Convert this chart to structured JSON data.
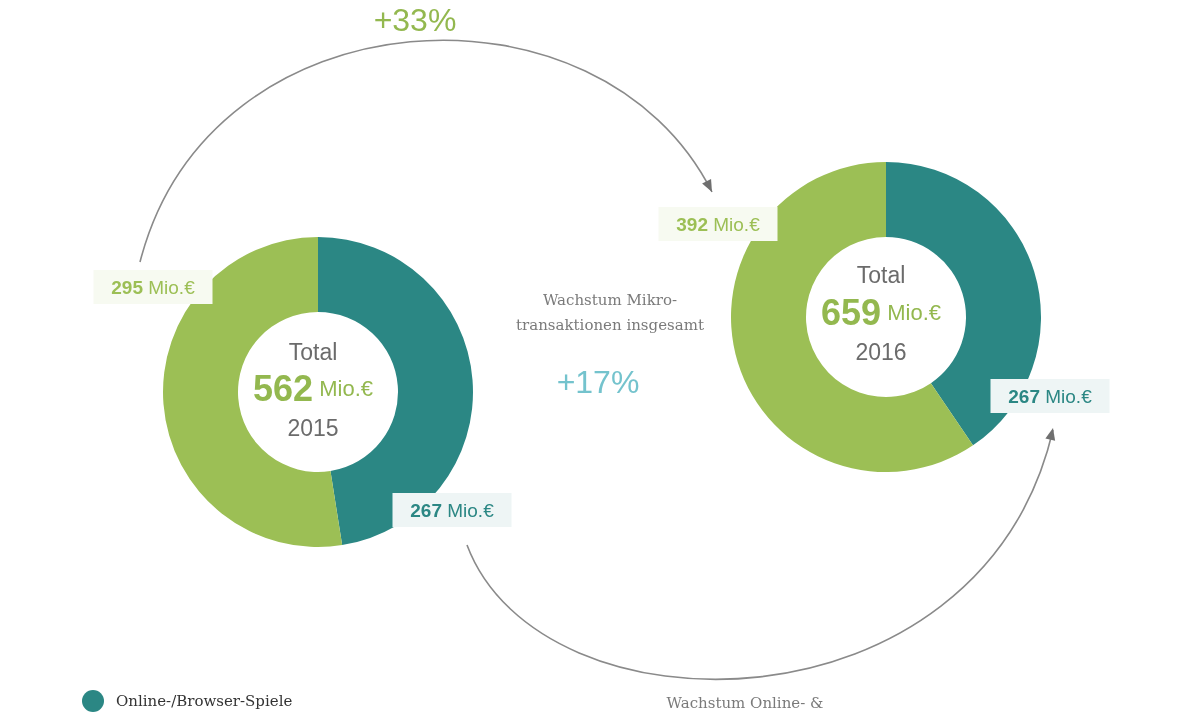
{
  "chart_data": [
    {
      "type": "donut",
      "title": "2015",
      "categories": [
        "Online-/Browser-Spiele",
        null
      ],
      "values": [
        267,
        295
      ],
      "colors": [
        "#2b8784",
        "#9cbf55"
      ],
      "value_labels": [
        "267 Mio.€",
        "295 Mio.€"
      ],
      "annotations": [
        "Total",
        "562 Mio.€"
      ],
      "legend": "bottom left"
    },
    {
      "type": "donut",
      "title": "2016",
      "categories": [
        null,
        null
      ],
      "values": [
        267,
        392
      ],
      "colors": [
        "#2b8784",
        "#9cbf55"
      ],
      "value_labels": [
        "267 Mio.€",
        "392 Mio.€"
      ],
      "annotations": [
        "Total",
        "659 Mio.€",
        "+33%",
        "Wachstum Mikro-\ntransaktionen insgesamt",
        "+17%",
        "Wachstum Online- &"
      ]
    }
  ]
}
